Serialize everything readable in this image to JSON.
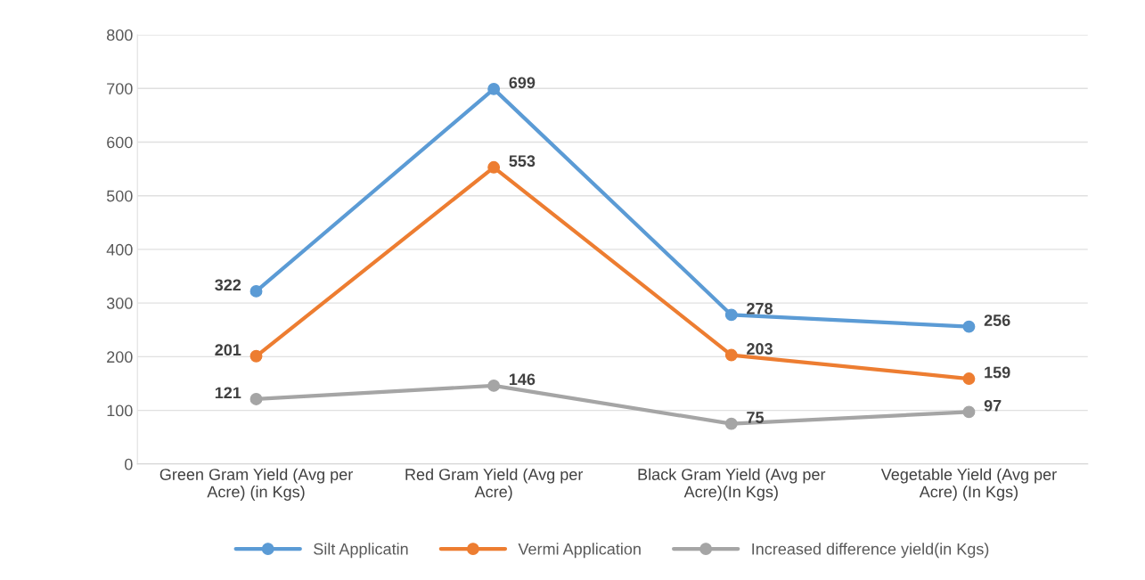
{
  "chart_data": {
    "type": "line",
    "categories": [
      "Green Gram Yield (Avg per\nAcre) (in Kgs)",
      "Red Gram Yield (Avg per\nAcre)",
      "Black Gram Yield (Avg per\nAcre)(In Kgs)",
      "Vegetable Yield (Avg per\nAcre) (In Kgs)"
    ],
    "series": [
      {
        "name": "Silt Applicatin",
        "color": "#5b9bd5",
        "values": [
          322,
          699,
          278,
          256
        ]
      },
      {
        "name": "Vermi Application",
        "color": "#ed7d31",
        "values": [
          201,
          553,
          203,
          159
        ]
      },
      {
        "name": "Increased difference yield(in Kgs)",
        "color": "#a5a5a5",
        "values": [
          121,
          146,
          75,
          97
        ]
      }
    ],
    "ylim": [
      0,
      800
    ],
    "yticks": [
      0,
      100,
      200,
      300,
      400,
      500,
      600,
      700,
      800
    ],
    "grid": "y",
    "legend": "bottom",
    "marker": "circle",
    "line_style": "solid",
    "data_labels": true
  }
}
